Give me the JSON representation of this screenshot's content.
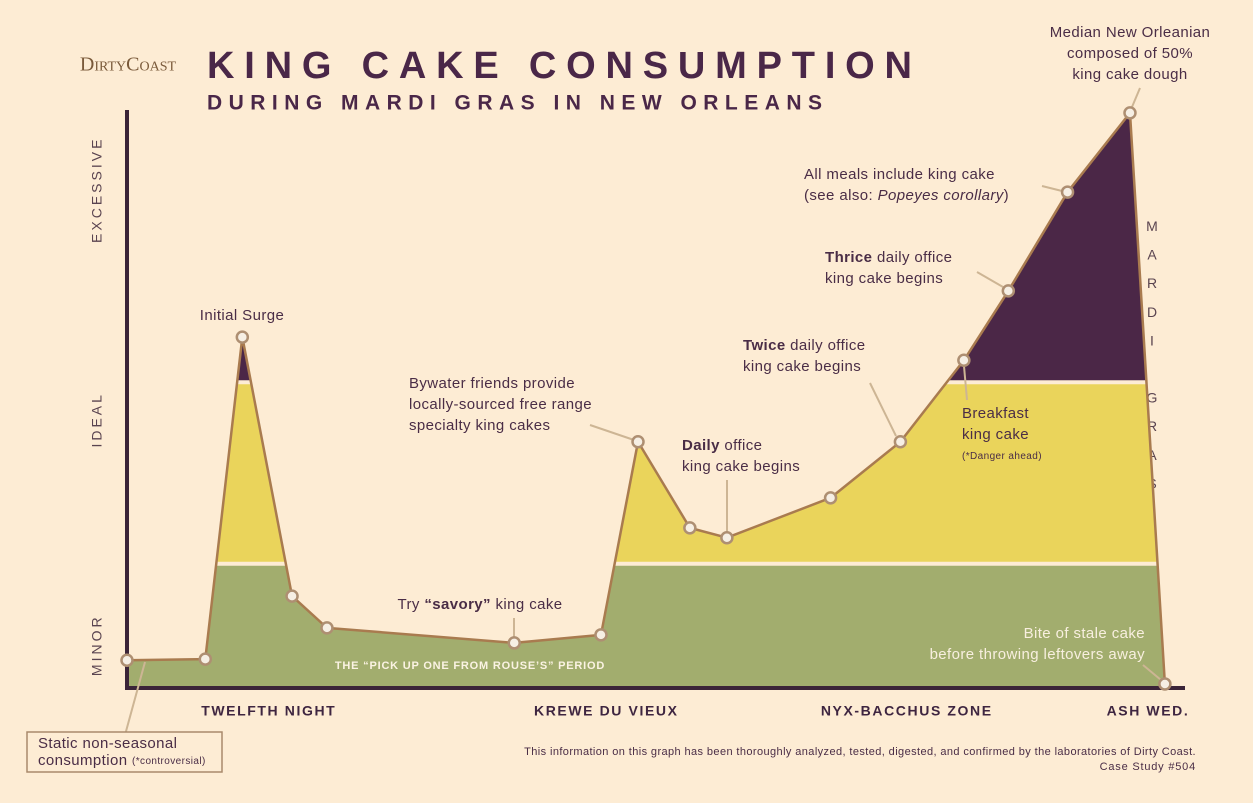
{
  "chart_data": {
    "type": "area",
    "logo": "DirtyCoast",
    "title": "KING CAKE CONSUMPTION",
    "subtitle": "DURING MARDI GRAS IN NEW ORLEANS",
    "x": [
      0,
      7.4,
      10.9,
      15.6,
      18.9,
      36.6,
      44.8,
      48.3,
      53.2,
      56.7,
      66.5,
      73.1,
      79.1,
      83.3,
      88.9,
      94.8,
      98.1
    ],
    "values": [
      4.8,
      5.0,
      60.7,
      15.9,
      10.4,
      7.8,
      9.2,
      42.6,
      27.7,
      26.0,
      32.9,
      42.6,
      56.7,
      68.7,
      85.8,
      99.5,
      0.7
    ],
    "line_color": "#a97b4f",
    "marker_color": "#f6efe4",
    "bands": [
      {
        "color": "#a2ad6e",
        "top": 21.5
      },
      {
        "color": "#ead45b",
        "top": 52.9
      },
      {
        "color": "#4b2747",
        "top": 100
      }
    ],
    "xlim": [
      0,
      100
    ],
    "ylim": [
      0,
      100
    ],
    "xticks": [
      {
        "value": 13.4,
        "label": "TWELFTH NIGHT"
      },
      {
        "value": 45.3,
        "label": "KREWE DU VIEUX"
      },
      {
        "value": 73.7,
        "label": "NYX-BACCHUS ZONE"
      },
      {
        "value": 96.5,
        "label": "ASH WED."
      }
    ],
    "yticks": [
      {
        "value": 7.4,
        "label": "MINOR"
      },
      {
        "value": 46.4,
        "label": "IDEAL"
      },
      {
        "value": 86.2,
        "label": "EXCESSIVE"
      }
    ],
    "band_label": "THE “PICK UP ONE FROM ROUSE’S” PERIOD",
    "vertical_label": "MARDI GRAS DAY",
    "annotations": [
      {
        "lines": [
          [
            "Initial Surge"
          ]
        ]
      },
      {
        "lines": [
          [
            "Bywater friends provide"
          ],
          [
            "locally-sourced free range"
          ],
          [
            "specialty king cakes"
          ]
        ]
      },
      {
        "lines": [
          [
            "Daily",
            " office"
          ],
          [
            "king cake begins"
          ]
        ]
      },
      {
        "lines": [
          [
            "Try ",
            "“savory”",
            " king cake"
          ]
        ]
      },
      {
        "lines": [
          [
            "Twice",
            " daily office"
          ],
          [
            "king cake begins"
          ]
        ]
      },
      {
        "lines": [
          [
            "Breakfast"
          ],
          [
            "king cake"
          ],
          [
            "(*Danger ahead)"
          ]
        ]
      },
      {
        "lines": [
          [
            "Thrice",
            " daily office"
          ],
          [
            "king cake begins"
          ]
        ]
      },
      {
        "lines": [
          [
            "All meals include king cake"
          ],
          [
            "(see also: ",
            "Popeyes corollary",
            ")"
          ]
        ]
      },
      {
        "lines": [
          [
            "Median New Orleanian"
          ],
          [
            "composed of 50%"
          ],
          [
            "king cake dough"
          ]
        ]
      },
      {
        "lines": [
          [
            "Bite of stale cake"
          ],
          [
            "before throwing leftovers away"
          ]
        ]
      },
      {
        "lines": [
          [
            "Static non-seasonal"
          ],
          [
            "consumption ",
            "(*controversial)"
          ]
        ]
      }
    ],
    "footer": [
      "This information on this graph has been thoroughly analyzed, tested, digested, and confirmed by the laboratories of Dirty Coast.",
      "Case Study #504"
    ]
  }
}
